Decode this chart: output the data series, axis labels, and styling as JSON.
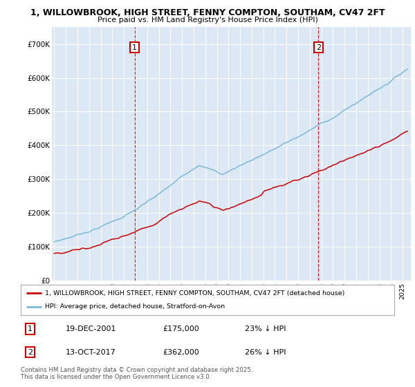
{
  "title_line1": "1, WILLOWBROOK, HIGH STREET, FENNY COMPTON, SOUTHAM, CV47 2FT",
  "title_line2": "Price paid vs. HM Land Registry's House Price Index (HPI)",
  "ylim": [
    0,
    750000
  ],
  "yticks": [
    0,
    100000,
    200000,
    300000,
    400000,
    500000,
    600000,
    700000
  ],
  "ytick_labels": [
    "£0",
    "£100K",
    "£200K",
    "£300K",
    "£400K",
    "£500K",
    "£600K",
    "£700K"
  ],
  "hpi_color": "#7ab8d9",
  "price_color": "#cc0000",
  "purchase1_date": "19-DEC-2001",
  "purchase1_price": "£175,000",
  "purchase1_hpi": "23% ↓ HPI",
  "purchase2_date": "13-OCT-2017",
  "purchase2_price": "£362,000",
  "purchase2_hpi": "26% ↓ HPI",
  "legend_line1": "1, WILLOWBROOK, HIGH STREET, FENNY COMPTON, SOUTHAM, CV47 2FT (detached house)",
  "legend_line2": "HPI: Average price, detached house, Stratford-on-Avon",
  "footer": "Contains HM Land Registry data © Crown copyright and database right 2025.\nThis data is licensed under the Open Government Licence v3.0.",
  "bg_color": "#ffffff",
  "plot_bg_color": "#dce8f5",
  "grid_color": "#ffffff"
}
